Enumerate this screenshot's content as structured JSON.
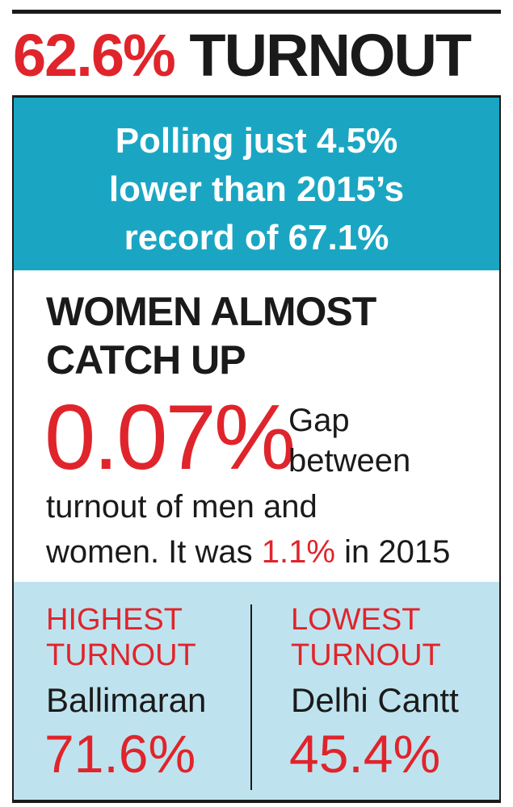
{
  "header": {
    "turnout": "62.6%",
    "title": "TURNOUT"
  },
  "banner": {
    "lines": [
      "Polling just 4.5%",
      "lower than 2015’s",
      "record of 67.1%"
    ]
  },
  "gap_section": {
    "heading_lines": [
      "WOMEN ALMOST",
      "CATCH UP"
    ],
    "figure": "0.07%",
    "side_lines": [
      "Gap",
      "between"
    ],
    "text_line": "turnout of men and",
    "sentence_start": "women. It was",
    "sentence_highlight": "1.1%",
    "sentence_end": "in 2015"
  },
  "highest": {
    "label_lines": [
      "HIGHEST",
      "TURNOUT"
    ],
    "place": "Ballimaran",
    "value": "71.6%"
  },
  "lowest": {
    "label_lines": [
      "LOWEST",
      "TURNOUT"
    ],
    "place": "Delhi Cantt",
    "value": "45.4%"
  }
}
